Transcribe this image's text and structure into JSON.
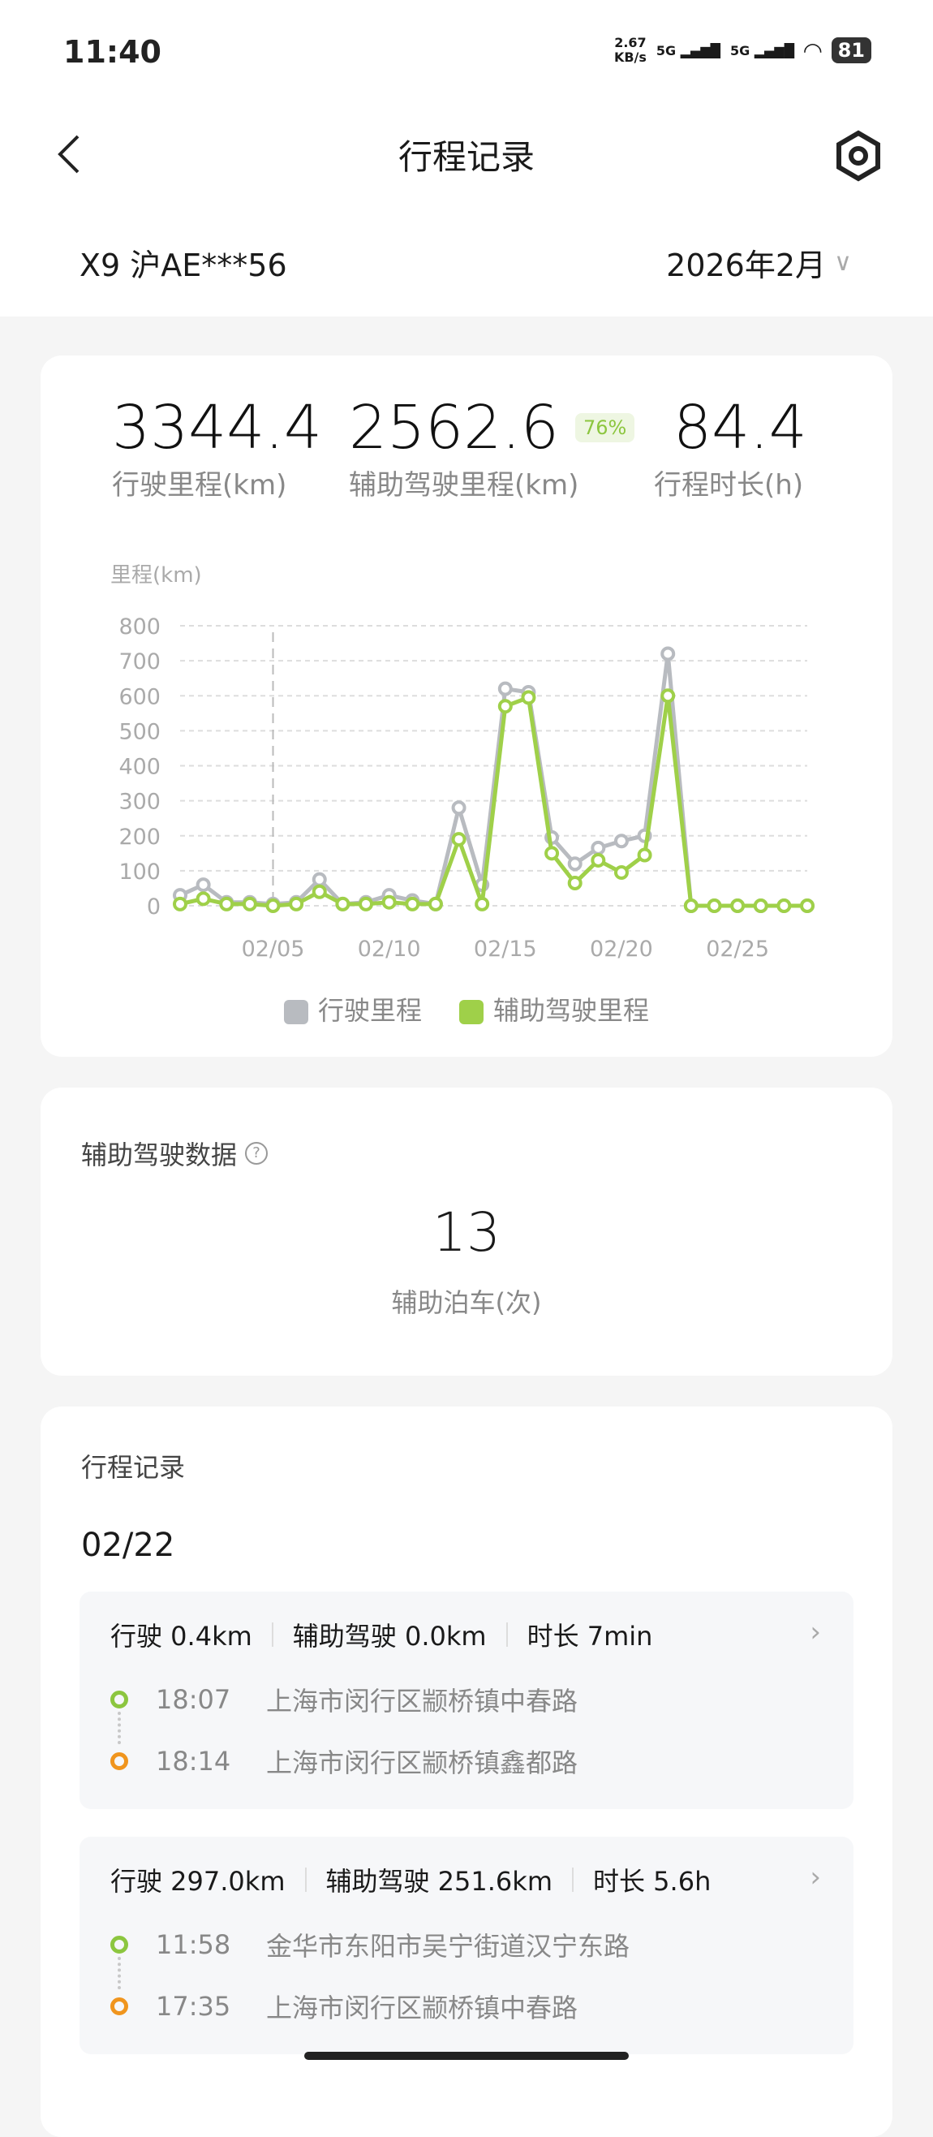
{
  "status_bar": {
    "time": "11:40",
    "net_speed": "2.67",
    "net_unit": "KB/s",
    "sim1": "5G",
    "sim2": "5G",
    "battery": "81"
  },
  "header": {
    "title": "行程记录",
    "back_icon": "chevron-left-icon",
    "settings_icon": "hexagon-settings-icon"
  },
  "vehicle": {
    "name": "X9 沪AE***56",
    "month": "2026年2月"
  },
  "summary": {
    "stats": [
      {
        "value": "3344.4",
        "label": "行驶里程(km)"
      },
      {
        "value": "2562.6",
        "label": "辅助驾驶里程(km)",
        "badge": "76%"
      },
      {
        "value": "84.4",
        "label": "行程时长(h)"
      }
    ]
  },
  "colors": {
    "total": "#b8bbc0",
    "assisted": "#9fd049",
    "start": "#8cc63f",
    "end": "#f0951e"
  },
  "chart_data": {
    "type": "line",
    "ylabel": "里程(km)",
    "ylim": [
      0,
      800
    ],
    "yticks": [
      "0",
      "100",
      "200",
      "300",
      "400",
      "500",
      "600",
      "700",
      "800"
    ],
    "x": [
      "02/01",
      "02/02",
      "02/03",
      "02/04",
      "02/05",
      "02/06",
      "02/07",
      "02/08",
      "02/09",
      "02/10",
      "02/11",
      "02/12",
      "02/13",
      "02/14",
      "02/15",
      "02/16",
      "02/17",
      "02/18",
      "02/19",
      "02/20",
      "02/21",
      "02/22",
      "02/23",
      "02/24",
      "02/25",
      "02/26",
      "02/27",
      "02/28"
    ],
    "xtick_labels": [
      "02/05",
      "02/10",
      "02/15",
      "02/20",
      "02/25"
    ],
    "series": [
      {
        "name": "行驶里程",
        "values": [
          30,
          60,
          10,
          10,
          5,
          10,
          75,
          5,
          10,
          30,
          15,
          5,
          280,
          60,
          620,
          610,
          195,
          120,
          165,
          185,
          200,
          720,
          0,
          0,
          0,
          0,
          0,
          0
        ]
      },
      {
        "name": "辅助驾驶里程",
        "values": [
          5,
          20,
          5,
          5,
          0,
          5,
          40,
          5,
          5,
          10,
          5,
          5,
          190,
          5,
          570,
          595,
          150,
          65,
          130,
          95,
          145,
          600,
          0,
          0,
          0,
          0,
          0,
          0
        ]
      }
    ],
    "grid": true,
    "legend": "bottom",
    "marker_line": "02/05"
  },
  "assist": {
    "title": "辅助驾驶数据",
    "count": "13",
    "count_label": "辅助泊车(次)"
  },
  "trips": {
    "title": "行程记录",
    "date": "02/22",
    "items": [
      {
        "drive": "行驶 0.4km",
        "assist": "辅助驾驶 0.0km",
        "duration": "时长 7min",
        "start_time": "18:07",
        "start_addr": "上海市闵行区颛桥镇中春路",
        "end_time": "18:14",
        "end_addr": "上海市闵行区颛桥镇鑫都路"
      },
      {
        "drive": "行驶 297.0km",
        "assist": "辅助驾驶 251.6km",
        "duration": "时长 5.6h",
        "start_time": "11:58",
        "start_addr": "金华市东阳市吴宁街道汉宁东路",
        "end_time": "17:35",
        "end_addr": "上海市闵行区颛桥镇中春路"
      }
    ]
  }
}
